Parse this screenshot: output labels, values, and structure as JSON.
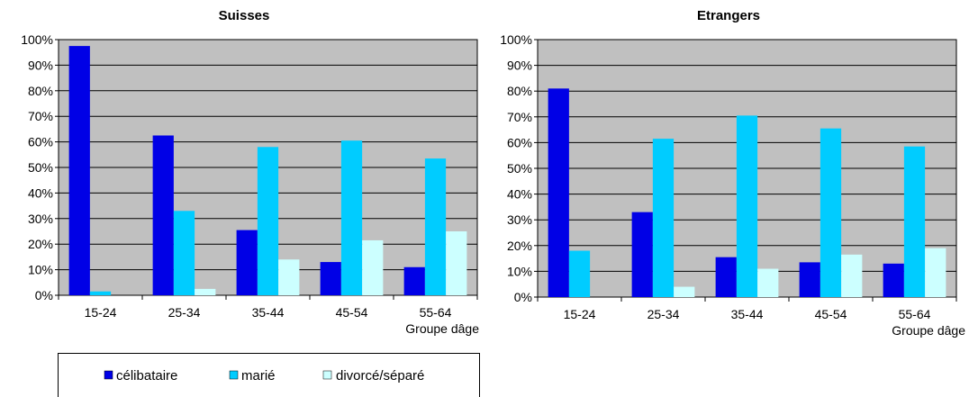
{
  "colors": {
    "plot_bg": "#c0c0c0",
    "grid": "#000000",
    "celibataire": "#0000e6",
    "marie": "#00ccff",
    "divorce": "#ccffff"
  },
  "legend": {
    "items": [
      "célibataire",
      "marié",
      "divorcé/séparé"
    ],
    "placement": "bottom-left"
  },
  "chart_data": [
    {
      "type": "bar",
      "title": "Suisses",
      "categories": [
        "15-24",
        "25-34",
        "35-44",
        "45-54",
        "55-64"
      ],
      "xlabel": "Groupe dâge",
      "ylabel": "",
      "ylim": [
        0,
        100
      ],
      "yticks": [
        "0%",
        "10%",
        "20%",
        "30%",
        "40%",
        "50%",
        "60%",
        "70%",
        "80%",
        "90%",
        "100%"
      ],
      "grid": true,
      "series": [
        {
          "name": "célibataire",
          "values": [
            97.5,
            62.5,
            25.5,
            13,
            11
          ]
        },
        {
          "name": "marié",
          "values": [
            1.5,
            33,
            58,
            60.5,
            53.5
          ]
        },
        {
          "name": "divorcé/séparé",
          "values": [
            0,
            2.5,
            14,
            21.5,
            25
          ]
        }
      ]
    },
    {
      "type": "bar",
      "title": "Etrangers",
      "categories": [
        "15-24",
        "25-34",
        "35-44",
        "45-54",
        "55-64"
      ],
      "xlabel": "Groupe dâge",
      "ylabel": "",
      "ylim": [
        0,
        100
      ],
      "yticks": [
        "0%",
        "10%",
        "20%",
        "30%",
        "40%",
        "50%",
        "60%",
        "70%",
        "80%",
        "90%",
        "100%"
      ],
      "grid": true,
      "series": [
        {
          "name": "célibataire",
          "values": [
            81,
            33,
            15.5,
            13.5,
            13
          ]
        },
        {
          "name": "marié",
          "values": [
            18,
            61.5,
            70.5,
            65.5,
            58.5
          ]
        },
        {
          "name": "divorcé/séparé",
          "values": [
            0,
            4,
            11,
            16.5,
            19
          ]
        }
      ]
    }
  ]
}
